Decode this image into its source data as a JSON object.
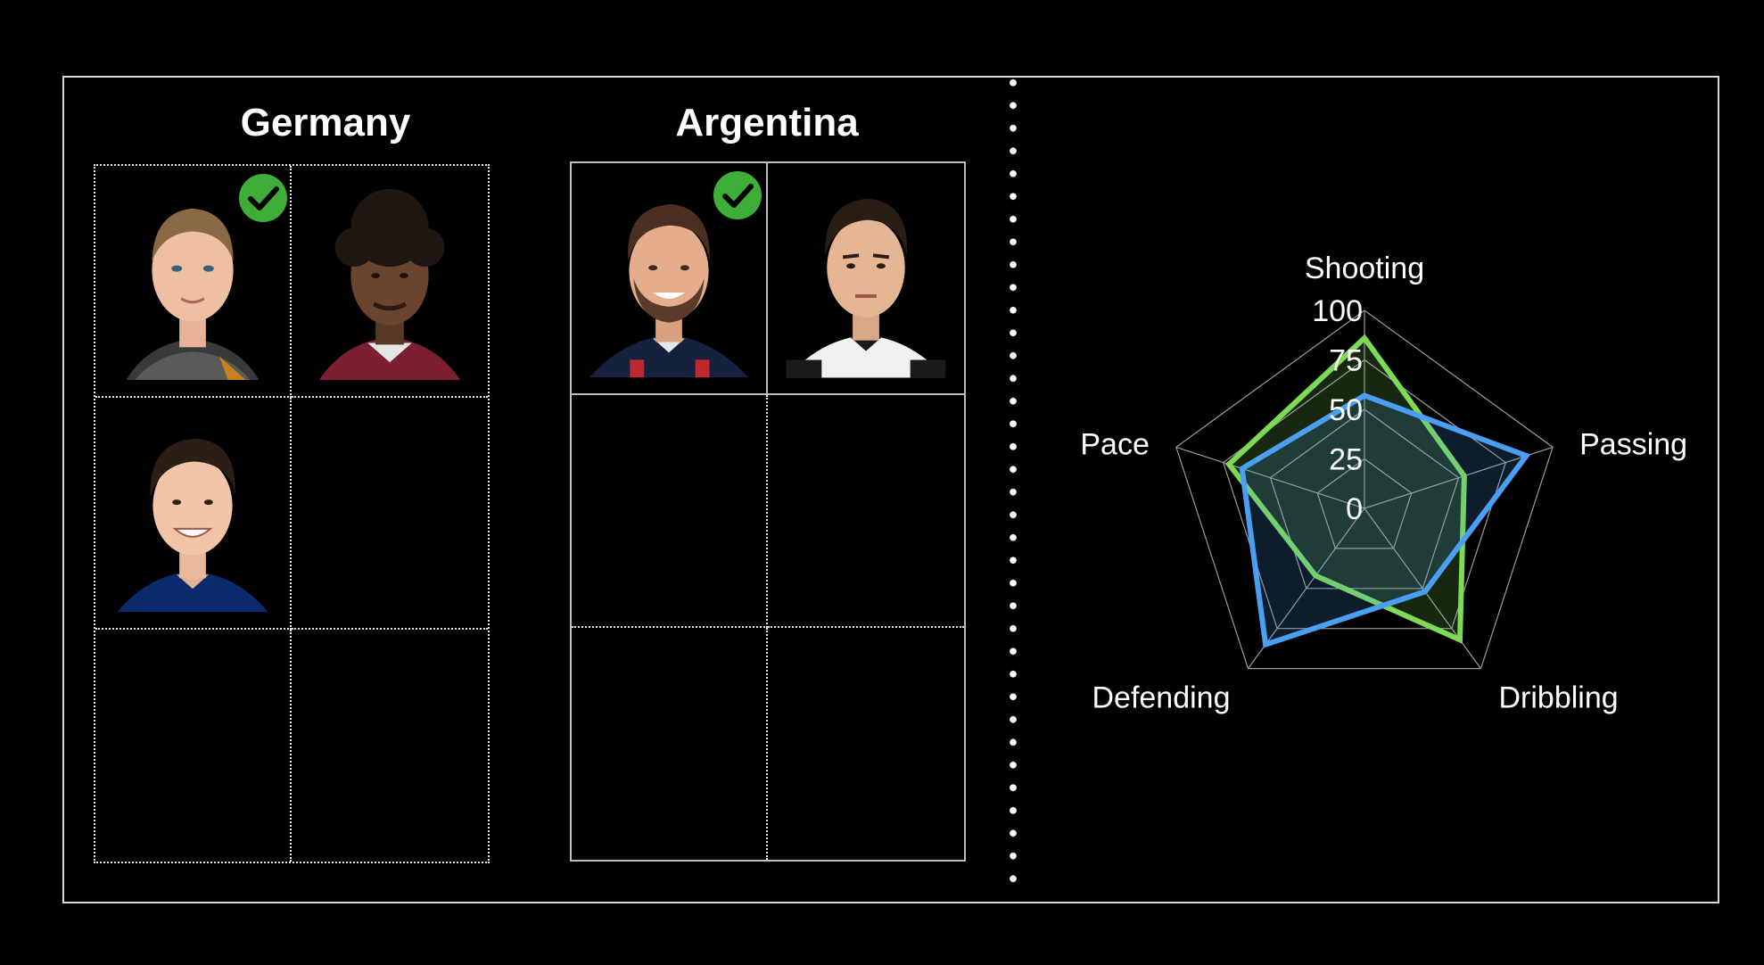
{
  "teams": [
    {
      "name": "Germany",
      "players": [
        {
          "slot": 1,
          "selected": true,
          "portrait": "player-portrait-goalkeeper-grey-kit"
        },
        {
          "slot": 2,
          "selected": false,
          "portrait": "player-portrait-curly-hair-maroon-kit"
        },
        {
          "slot": 3,
          "selected": false,
          "portrait": "player-portrait-smiling-blue-kit"
        }
      ]
    },
    {
      "name": "Argentina",
      "players": [
        {
          "slot": 1,
          "selected": true,
          "portrait": "player-portrait-bearded-navy-red-kit"
        },
        {
          "slot": 2,
          "selected": false,
          "portrait": "player-portrait-black-white-kit"
        }
      ]
    }
  ],
  "colors": {
    "selected_check": "#3fae39",
    "series_green": "#7ed957",
    "series_blue": "#4a9ff2",
    "grid_line": "#9a9a9a"
  },
  "chart_data": {
    "type": "radar",
    "axes": [
      "Shooting",
      "Passing",
      "Dribbling",
      "Defending",
      "Pace"
    ],
    "ticks": [
      0,
      25,
      50,
      75,
      100
    ],
    "range": [
      0,
      100
    ],
    "series": [
      {
        "color": "#7ed957",
        "values": [
          86,
          53,
          82,
          42,
          72
        ]
      },
      {
        "color": "#4a9ff2",
        "values": [
          57,
          86,
          52,
          85,
          65
        ]
      }
    ]
  }
}
